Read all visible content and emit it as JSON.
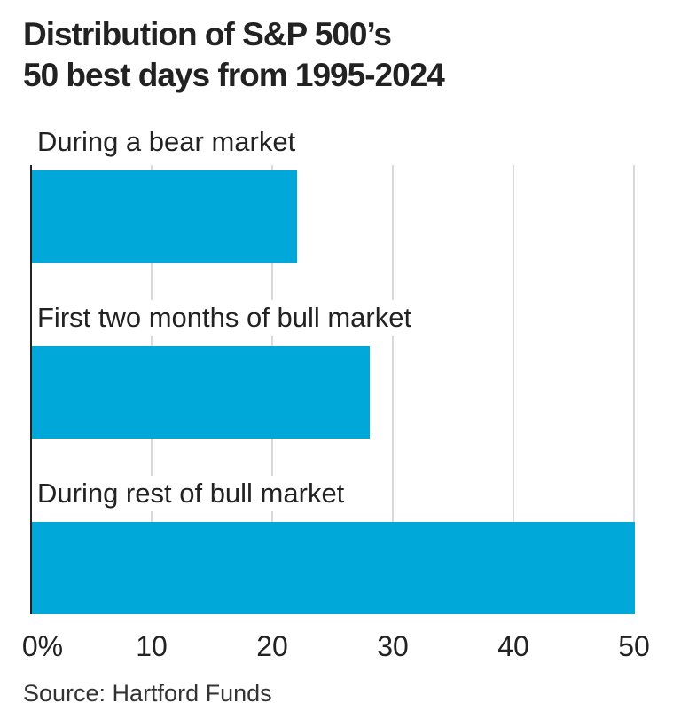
{
  "title_line1": "Distribution of S&P 500’s",
  "title_line2": "50 best days from 1995-2024",
  "source": "Source: Hartford Funds",
  "colors": {
    "bar": "#00a8d9",
    "axis": "#222222",
    "grid": "#d9d9d9"
  },
  "chart_data": {
    "type": "bar",
    "orientation": "horizontal",
    "title": "Distribution of S&P 500’s 50 best days from 1995-2024",
    "categories": [
      "During a bear market",
      "First two months of bull market",
      "During rest of bull market"
    ],
    "values": [
      22,
      28,
      50
    ],
    "xlabel": "",
    "ylabel": "",
    "xlim": [
      0,
      50
    ],
    "x_ticks": [
      "0%",
      "10",
      "20",
      "30",
      "40",
      "50"
    ],
    "grid": true,
    "legend": null,
    "source": "Source: Hartford Funds"
  }
}
